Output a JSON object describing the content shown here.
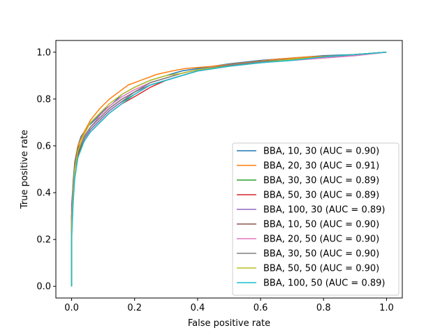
{
  "chart_data": {
    "type": "line",
    "title": "",
    "xlabel": "False positive rate",
    "ylabel": "True positive rate",
    "xlim": [
      -0.05,
      1.05
    ],
    "ylim": [
      -0.05,
      1.05
    ],
    "xticks": [
      "0.0",
      "0.2",
      "0.4",
      "0.6",
      "0.8",
      "1.0"
    ],
    "yticks": [
      "0.0",
      "0.2",
      "0.4",
      "0.6",
      "0.8",
      "1.0"
    ],
    "grid": false,
    "legend_position": "lower-right",
    "series": [
      {
        "name": "BBA, 10, 30 (AUC = 0.90)",
        "color": "#1f77b4",
        "x": [
          0,
          0,
          0.005,
          0.01,
          0.02,
          0.03,
          0.05,
          0.08,
          0.1,
          0.13,
          0.16,
          0.2,
          0.25,
          0.3,
          0.35,
          0.4,
          0.5,
          0.6,
          0.7,
          0.8,
          0.9,
          1.0
        ],
        "y": [
          0,
          0.3,
          0.45,
          0.53,
          0.6,
          0.64,
          0.68,
          0.72,
          0.75,
          0.78,
          0.82,
          0.85,
          0.88,
          0.9,
          0.92,
          0.93,
          0.95,
          0.965,
          0.975,
          0.985,
          0.99,
          1.0
        ]
      },
      {
        "name": "BBA, 20, 30 (AUC = 0.91)",
        "color": "#ff7f0e",
        "x": [
          0,
          0,
          0.005,
          0.01,
          0.02,
          0.04,
          0.06,
          0.09,
          0.12,
          0.15,
          0.18,
          0.22,
          0.27,
          0.32,
          0.36,
          0.45,
          0.55,
          0.65,
          0.75,
          0.85,
          0.95,
          1.0
        ],
        "y": [
          0,
          0.25,
          0.42,
          0.52,
          0.6,
          0.66,
          0.71,
          0.76,
          0.8,
          0.83,
          0.86,
          0.88,
          0.905,
          0.92,
          0.93,
          0.94,
          0.955,
          0.97,
          0.98,
          0.985,
          0.995,
          1.0
        ]
      },
      {
        "name": "BBA, 30, 30 (AUC = 0.89)",
        "color": "#2ca02c",
        "x": [
          0,
          0,
          0.005,
          0.01,
          0.02,
          0.04,
          0.06,
          0.09,
          0.12,
          0.15,
          0.2,
          0.25,
          0.3,
          0.35,
          0.4,
          0.5,
          0.6,
          0.7,
          0.8,
          0.9,
          1.0
        ],
        "y": [
          0,
          0.28,
          0.4,
          0.5,
          0.57,
          0.63,
          0.67,
          0.71,
          0.75,
          0.78,
          0.82,
          0.86,
          0.88,
          0.9,
          0.92,
          0.94,
          0.96,
          0.97,
          0.98,
          0.99,
          1.0
        ]
      },
      {
        "name": "BBA, 50, 30 (AUC = 0.89)",
        "color": "#d62728",
        "x": [
          0,
          0,
          0.005,
          0.01,
          0.02,
          0.04,
          0.06,
          0.09,
          0.12,
          0.16,
          0.2,
          0.25,
          0.3,
          0.35,
          0.4,
          0.5,
          0.6,
          0.7,
          0.8,
          0.9,
          1.0
        ],
        "y": [
          0,
          0.3,
          0.42,
          0.5,
          0.56,
          0.62,
          0.66,
          0.7,
          0.74,
          0.78,
          0.81,
          0.85,
          0.88,
          0.9,
          0.92,
          0.94,
          0.955,
          0.97,
          0.98,
          0.99,
          1.0
        ]
      },
      {
        "name": "BBA, 100, 30 (AUC = 0.89)",
        "color": "#9467bd",
        "x": [
          0,
          0,
          0.005,
          0.01,
          0.02,
          0.04,
          0.06,
          0.09,
          0.12,
          0.16,
          0.2,
          0.25,
          0.3,
          0.35,
          0.4,
          0.5,
          0.6,
          0.7,
          0.8,
          0.9,
          1.0
        ],
        "y": [
          0,
          0.35,
          0.44,
          0.52,
          0.58,
          0.63,
          0.67,
          0.71,
          0.75,
          0.79,
          0.83,
          0.86,
          0.88,
          0.9,
          0.92,
          0.94,
          0.955,
          0.965,
          0.975,
          0.985,
          1.0
        ]
      },
      {
        "name": "BBA, 10, 50 (AUC = 0.90)",
        "color": "#8c564b",
        "x": [
          0,
          0,
          0.005,
          0.01,
          0.02,
          0.04,
          0.06,
          0.09,
          0.12,
          0.16,
          0.2,
          0.25,
          0.3,
          0.35,
          0.4,
          0.5,
          0.6,
          0.7,
          0.8,
          0.9,
          1.0
        ],
        "y": [
          0,
          0.3,
          0.43,
          0.52,
          0.59,
          0.64,
          0.68,
          0.72,
          0.76,
          0.8,
          0.83,
          0.87,
          0.89,
          0.91,
          0.925,
          0.945,
          0.96,
          0.97,
          0.98,
          0.99,
          1.0
        ]
      },
      {
        "name": "BBA, 20, 50 (AUC = 0.90)",
        "color": "#e377c2",
        "x": [
          0,
          0,
          0.005,
          0.01,
          0.02,
          0.04,
          0.06,
          0.09,
          0.12,
          0.16,
          0.2,
          0.25,
          0.3,
          0.35,
          0.4,
          0.5,
          0.6,
          0.7,
          0.8,
          0.9,
          1.0
        ],
        "y": [
          0,
          0.27,
          0.41,
          0.5,
          0.58,
          0.64,
          0.68,
          0.73,
          0.77,
          0.81,
          0.84,
          0.87,
          0.89,
          0.91,
          0.925,
          0.945,
          0.96,
          0.965,
          0.975,
          0.985,
          1.0
        ]
      },
      {
        "name": "BBA, 30, 50 (AUC = 0.90)",
        "color": "#7f7f7f",
        "x": [
          0,
          0,
          0.005,
          0.01,
          0.02,
          0.04,
          0.06,
          0.09,
          0.12,
          0.16,
          0.2,
          0.25,
          0.3,
          0.35,
          0.4,
          0.5,
          0.6,
          0.7,
          0.8,
          0.9,
          1.0
        ],
        "y": [
          0,
          0.29,
          0.42,
          0.51,
          0.58,
          0.64,
          0.68,
          0.72,
          0.76,
          0.8,
          0.83,
          0.87,
          0.89,
          0.91,
          0.925,
          0.945,
          0.96,
          0.97,
          0.98,
          0.99,
          1.0
        ]
      },
      {
        "name": "BBA, 50, 50 (AUC = 0.90)",
        "color": "#bcbd22",
        "x": [
          0,
          0,
          0.005,
          0.01,
          0.02,
          0.04,
          0.06,
          0.09,
          0.12,
          0.16,
          0.2,
          0.25,
          0.3,
          0.35,
          0.4,
          0.5,
          0.6,
          0.7,
          0.8,
          0.9,
          1.0
        ],
        "y": [
          0,
          0.26,
          0.4,
          0.5,
          0.58,
          0.65,
          0.7,
          0.74,
          0.78,
          0.82,
          0.85,
          0.88,
          0.9,
          0.91,
          0.925,
          0.94,
          0.955,
          0.97,
          0.98,
          0.99,
          1.0
        ]
      },
      {
        "name": "BBA, 100, 50 (AUC = 0.89)",
        "color": "#17becf",
        "x": [
          0,
          0,
          0.005,
          0.01,
          0.02,
          0.04,
          0.06,
          0.09,
          0.12,
          0.16,
          0.2,
          0.25,
          0.3,
          0.35,
          0.4,
          0.5,
          0.6,
          0.7,
          0.8,
          0.9,
          1.0
        ],
        "y": [
          0,
          0.2,
          0.36,
          0.46,
          0.55,
          0.62,
          0.66,
          0.7,
          0.74,
          0.78,
          0.82,
          0.86,
          0.88,
          0.9,
          0.92,
          0.94,
          0.955,
          0.965,
          0.98,
          0.99,
          1.0
        ]
      }
    ]
  }
}
